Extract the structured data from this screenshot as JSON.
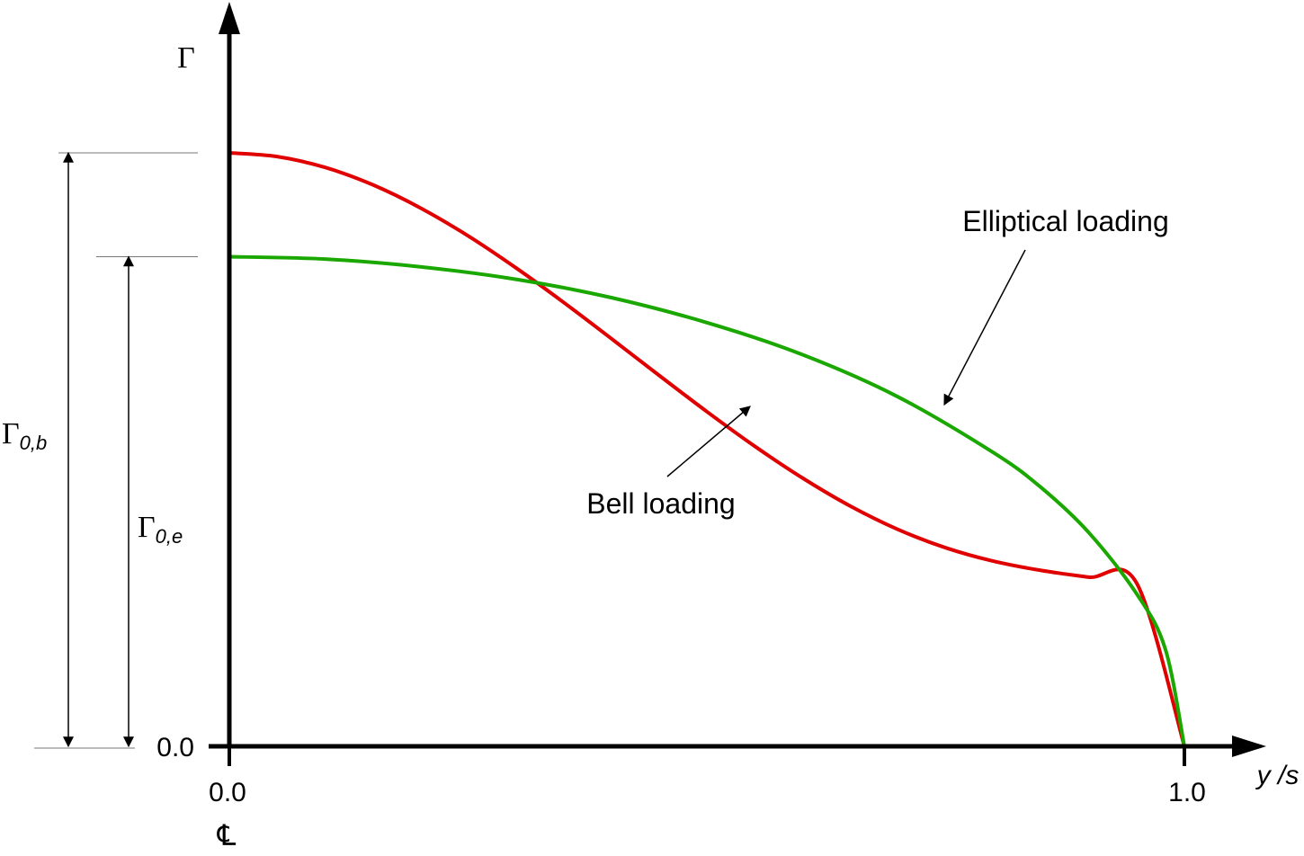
{
  "chart_data": {
    "type": "line",
    "title": "",
    "xlabel": "y /s",
    "ylabel": "Γ",
    "xlim": [
      0.0,
      1.0
    ],
    "ylim": [
      0.0,
      1.0
    ],
    "x_ticks": [
      "0.0",
      "1.0"
    ],
    "y_ticks": [
      "0.0"
    ],
    "centerline_symbol": "℄",
    "grid": false,
    "legend": "none",
    "series": [
      {
        "name": "Bell loading",
        "color": "#e00000",
        "x": [
          0.0,
          0.05,
          0.1,
          0.15,
          0.2,
          0.25,
          0.3,
          0.35,
          0.4,
          0.45,
          0.5,
          0.55,
          0.6,
          0.65,
          0.7,
          0.75,
          0.8,
          0.85,
          0.9,
          0.95,
          1.0
        ],
        "y": [
          1.0,
          0.9938,
          0.9756,
          0.9463,
          0.9073,
          0.8601,
          0.8064,
          0.7481,
          0.687,
          0.625,
          0.564,
          0.5058,
          0.4522,
          0.405,
          0.3655,
          0.3345,
          0.312,
          0.2963,
          0.285,
          0.275,
          0.0
        ]
      },
      {
        "name": "Elliptical loading",
        "color": "#1aa800",
        "x": [
          0.0,
          0.1,
          0.2,
          0.3,
          0.4,
          0.5,
          0.6,
          0.7,
          0.8,
          0.85,
          0.9,
          0.95,
          0.98,
          1.0
        ],
        "y": [
          0.825,
          0.821,
          0.808,
          0.787,
          0.756,
          0.714,
          0.66,
          0.589,
          0.495,
          0.436,
          0.36,
          0.257,
          0.164,
          0.0
        ]
      }
    ],
    "annotations": [
      {
        "text": "Elliptical loading",
        "series": "Elliptical loading"
      },
      {
        "text": "Bell loading",
        "series": "Bell loading"
      },
      {
        "text": "Γ",
        "subscript": "0,b",
        "meaning": "peak of bell loading"
      },
      {
        "text": "Γ",
        "subscript": "0,e",
        "meaning": "peak of elliptical loading"
      }
    ]
  }
}
